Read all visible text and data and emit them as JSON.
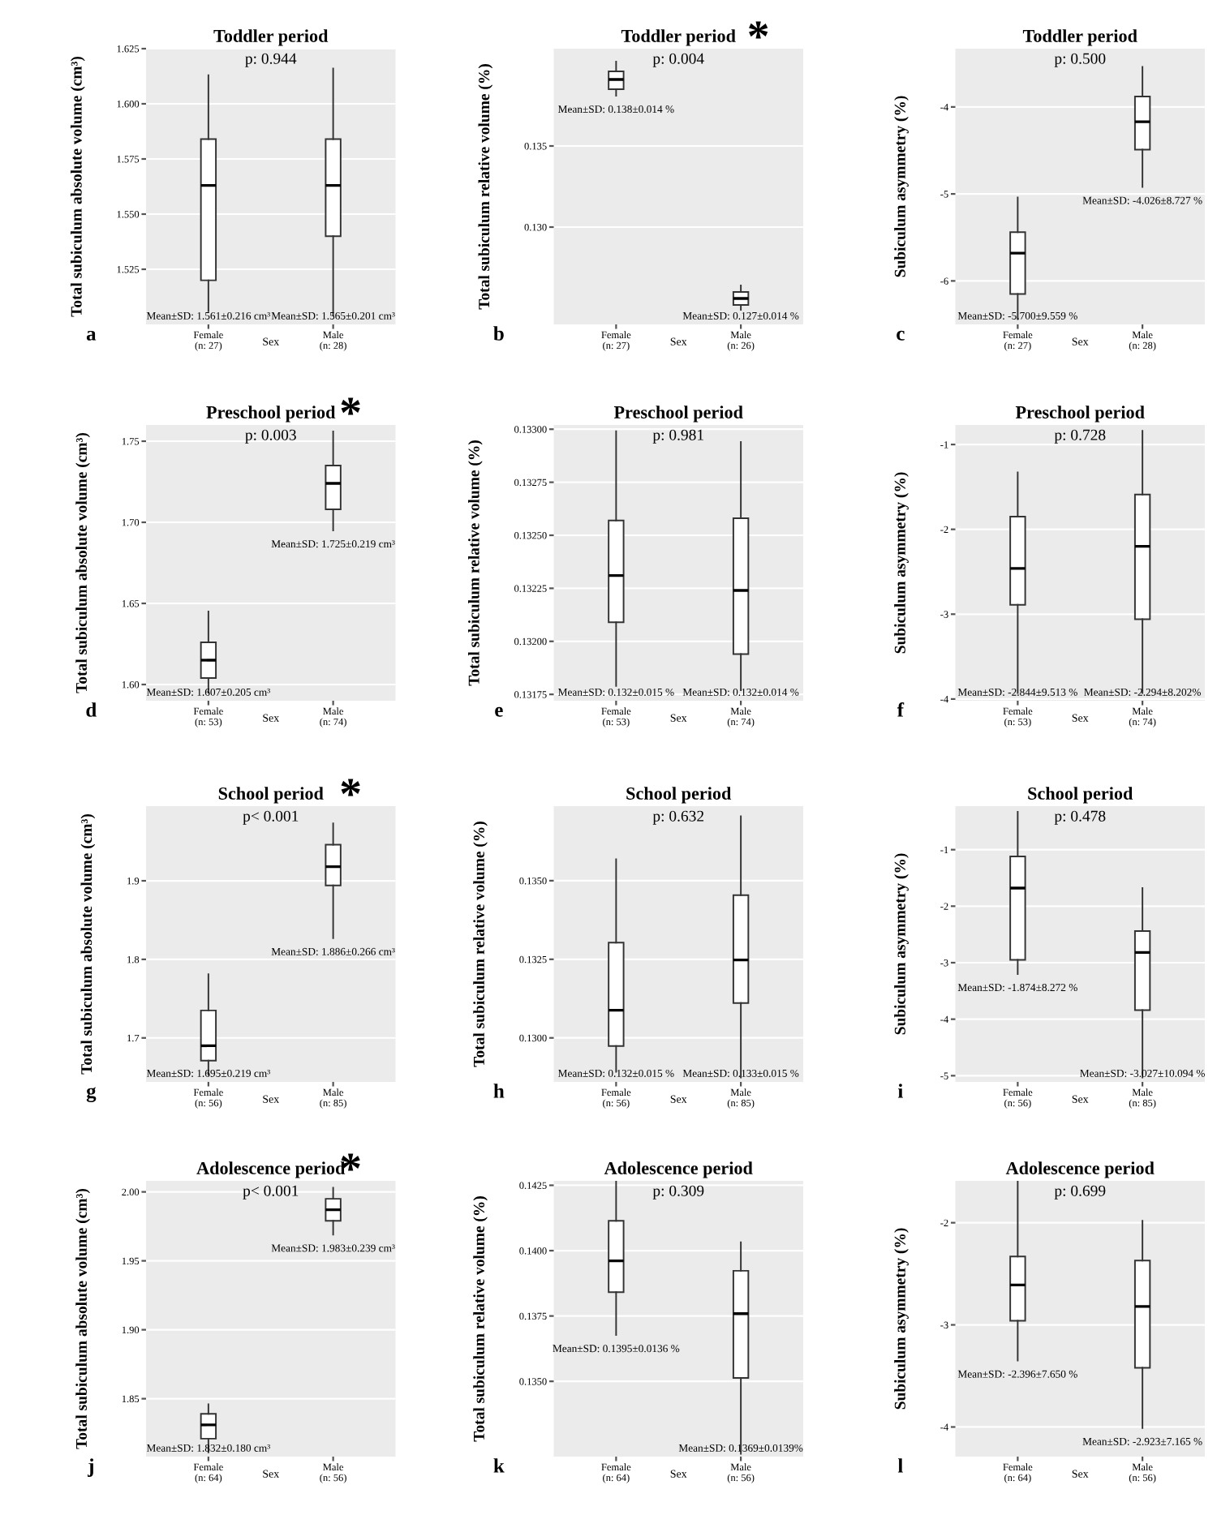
{
  "chart_data": [
    {
      "type": "box",
      "title": "Toddler period",
      "subtitle": "p: 0.944",
      "xlabel": "Sex",
      "ylabel": "Total subiculum absolute volume (cm³)",
      "categories": [
        "Female\n(n: 27)",
        "Male\n(n: 28)"
      ],
      "grid": "y",
      "ylim": [
        1.5,
        1.625
      ],
      "yticks": [
        1.525,
        {
          "value": 1.55,
          "label": "1.550"
        },
        1.575,
        {
          "value": 1.6,
          "label": "1.600"
        },
        1.625
      ],
      "boxes": [
        {
          "low": 1.506,
          "q1": 1.52,
          "median": 1.563,
          "q3": 1.584,
          "high": 1.613
        },
        {
          "low": 1.504,
          "q1": 1.54,
          "median": 1.563,
          "q3": 1.584,
          "high": 1.616
        }
      ],
      "annotations": [
        "a",
        "Mean±SD: 1.561±0.216 cm³",
        "Mean±SD: 1.565±0.201 cm³"
      ]
    },
    {
      "type": "box",
      "title": "Toddler period",
      "subtitle": "p: 0.004",
      "xlabel": "Sex",
      "ylabel": "Total subiculum relative volume (%)",
      "categories": [
        "Female\n(n: 27)",
        "Male\n(n: 26)"
      ],
      "grid": "y",
      "ylim": [
        0.124,
        0.141
      ],
      "yticks": [
        {
          "value": 0.13,
          "label": "0.130"
        },
        0.135
      ],
      "boxes": [
        {
          "low": 0.1381,
          "q1": 0.1385,
          "median": 0.1391,
          "q3": 0.1396,
          "high": 0.1402
        },
        {
          "low": 0.1249,
          "q1": 0.1252,
          "median": 0.1256,
          "q3": 0.126,
          "high": 0.1264
        }
      ],
      "annotations": [
        "b",
        "*",
        "Mean±SD: 0.138±0.014 %",
        "Mean±SD: 0.127±0.014 %"
      ]
    },
    {
      "type": "box",
      "title": "Toddler period",
      "subtitle": "p: 0.500",
      "xlabel": "Sex",
      "ylabel": "Subiculum asymmetry (%)",
      "categories": [
        "Female\n(n: 27)",
        "Male\n(n: 28)"
      ],
      "grid": "y",
      "ylim": [
        -6.5,
        -3.33
      ],
      "yticks": [
        -6,
        -5,
        -4
      ],
      "boxes": [
        {
          "low": -6.44,
          "q1": -6.15,
          "median": -5.68,
          "q3": -5.44,
          "high": -5.04
        },
        {
          "low": -4.92,
          "q1": -4.49,
          "median": -4.17,
          "q3": -3.88,
          "high": -3.54
        }
      ],
      "annotations": [
        "c",
        "Mean±SD: -5.700±9.559 %",
        "Mean±SD: -4.026±8.727 %"
      ]
    },
    {
      "type": "box",
      "title": "Preschool period",
      "subtitle": "p: 0.003",
      "xlabel": "Sex",
      "ylabel": "Total subiculum absolute volume (cm³)",
      "categories": [
        "Female\n(n: 53)",
        "Male\n(n: 74)"
      ],
      "grid": "y",
      "ylim": [
        1.59,
        1.76
      ],
      "yticks": [
        {
          "value": 1.6,
          "label": "1.60"
        },
        1.65,
        {
          "value": 1.7,
          "label": "1.70"
        },
        1.75
      ],
      "boxes": [
        {
          "low": 1.595,
          "q1": 1.604,
          "median": 1.615,
          "q3": 1.626,
          "high": 1.645
        },
        {
          "low": 1.695,
          "q1": 1.708,
          "median": 1.724,
          "q3": 1.735,
          "high": 1.756
        }
      ],
      "annotations": [
        "d",
        "*",
        "Mean±SD: 1.607±0.205 cm³",
        "Mean±SD: 1.725±0.219 cm³"
      ]
    },
    {
      "type": "box",
      "title": "Preschool period",
      "subtitle": "p: 0.981",
      "xlabel": "Sex",
      "ylabel": "Total subiculum relative volume (%)",
      "categories": [
        "Female\n(n: 53)",
        "Male\n(n: 74)"
      ],
      "grid": "y",
      "ylim": [
        0.13172,
        0.13302
      ],
      "yticks": [
        {
          "value": 0.13175,
          "label": "0.13175"
        },
        {
          "value": 0.132,
          "label": "0.13200"
        },
        {
          "value": 0.13225,
          "label": "0.13225"
        },
        {
          "value": 0.1325,
          "label": "0.13250"
        },
        {
          "value": 0.13275,
          "label": "0.13275"
        },
        {
          "value": 0.133,
          "label": "0.13300"
        }
      ],
      "boxes": [
        {
          "low": 0.13179,
          "q1": 0.13209,
          "median": 0.13231,
          "q3": 0.13257,
          "high": 0.13299
        },
        {
          "low": 0.13177,
          "q1": 0.13194,
          "median": 0.13224,
          "q3": 0.13258,
          "high": 0.13294
        }
      ],
      "annotations": [
        "e",
        "Mean±SD: 0.132±0.015 %",
        "Mean±SD: 0.132±0.014 %"
      ]
    },
    {
      "type": "box",
      "title": "Preschool period",
      "subtitle": "p: 0.728",
      "xlabel": "Sex",
      "ylabel": "Subiculum asymmetry (%)",
      "categories": [
        "Female\n(n: 53)",
        "Male\n(n: 74)"
      ],
      "grid": "y",
      "ylim": [
        -4.02,
        -0.77
      ],
      "yticks": [
        -4,
        -3,
        -2,
        -1
      ],
      "boxes": [
        {
          "low": -3.93,
          "q1": -2.89,
          "median": -2.46,
          "q3": -1.85,
          "high": -1.33
        },
        {
          "low": -3.93,
          "q1": -3.06,
          "median": -2.2,
          "q3": -1.59,
          "high": -0.84
        }
      ],
      "annotations": [
        "f",
        "Mean±SD: -2.844±9.513 %",
        "Mean±SD: -2.294±8.202%"
      ]
    },
    {
      "type": "box",
      "title": "School period",
      "subtitle": "p< 0.001",
      "xlabel": "Sex",
      "ylabel": "Total subiculum absolute volume (cm³)",
      "categories": [
        "Female\n(n: 56)",
        "Male\n(n: 85)"
      ],
      "grid": "y",
      "ylim": [
        1.644,
        1.995
      ],
      "yticks": [
        1.7,
        1.8,
        1.9
      ],
      "boxes": [
        {
          "low": 1.653,
          "q1": 1.671,
          "median": 1.69,
          "q3": 1.735,
          "high": 1.781
        },
        {
          "low": 1.827,
          "q1": 1.894,
          "median": 1.918,
          "q3": 1.946,
          "high": 1.973
        }
      ],
      "annotations": [
        "g",
        "*",
        "Mean±SD: 1.695±0.219 cm³",
        "Mean±SD: 1.886±0.266 cm³"
      ]
    },
    {
      "type": "box",
      "title": "School period",
      "subtitle": "p: 0.632",
      "xlabel": "Sex",
      "ylabel": "Total subiculum relative volume (%)",
      "categories": [
        "Female\n(n: 56)",
        "Male\n(n: 85)"
      ],
      "grid": "y",
      "ylim": [
        0.1286,
        0.13737
      ],
      "yticks": [
        {
          "value": 0.13,
          "label": "0.1300"
        },
        0.1325,
        {
          "value": 0.135,
          "label": "0.1350"
        }
      ],
      "boxes": [
        {
          "low": 0.12892,
          "q1": 0.12974,
          "median": 0.13088,
          "q3": 0.13303,
          "high": 0.13568
        },
        {
          "low": 0.12874,
          "q1": 0.13111,
          "median": 0.13248,
          "q3": 0.13454,
          "high": 0.13705
        }
      ],
      "annotations": [
        "h",
        "Mean±SD: 0.132±0.015 %",
        "Mean±SD: 0.133±0.015 %"
      ]
    },
    {
      "type": "box",
      "title": "School period",
      "subtitle": "p: 0.478",
      "xlabel": "Sex",
      "ylabel": "Subiculum asymmetry (%)",
      "categories": [
        "Female\n(n: 56)",
        "Male\n(n: 85)"
      ],
      "grid": "y",
      "ylim": [
        -5.11,
        -0.23
      ],
      "yticks": [
        -5,
        -4,
        -3,
        -2,
        -1
      ],
      "boxes": [
        {
          "low": -3.2,
          "q1": -2.95,
          "median": -1.68,
          "q3": -1.12,
          "high": -0.33
        },
        {
          "low": -5.03,
          "q1": -3.84,
          "median": -2.82,
          "q3": -2.44,
          "high": -1.68
        }
      ],
      "annotations": [
        "i",
        "Mean±SD: -1.874±8.272 %",
        "Mean±SD: -3.027±10.094 %"
      ]
    },
    {
      "type": "box",
      "title": "Adolescence period",
      "subtitle": "p< 0.001",
      "xlabel": "Sex",
      "ylabel": "Total subiculum absolute volume (cm³)",
      "categories": [
        "Female\n(n: 64)",
        "Male\n(n: 56)"
      ],
      "grid": "y",
      "ylim": [
        1.808,
        2.008
      ],
      "yticks": [
        1.85,
        {
          "value": 1.9,
          "label": "1.90"
        },
        1.95,
        {
          "value": 2.0,
          "label": "2.00"
        }
      ],
      "boxes": [
        {
          "low": 1.811,
          "q1": 1.821,
          "median": 1.831,
          "q3": 1.839,
          "high": 1.846
        },
        {
          "low": 1.969,
          "q1": 1.979,
          "median": 1.987,
          "q3": 1.995,
          "high": 2.003
        }
      ],
      "annotations": [
        "j",
        "*",
        "Mean±SD: 1.832±0.180 cm³",
        "Mean±SD: 1.983±0.239 cm³"
      ]
    },
    {
      "type": "box",
      "title": "Adolescence period",
      "subtitle": "p: 0.309",
      "xlabel": "Sex",
      "ylabel": "Total subiculum relative volume (%)",
      "categories": [
        "Female\n(n: 64)",
        "Male\n(n: 56)"
      ],
      "grid": "y",
      "ylim": [
        0.13212,
        0.14267
      ],
      "yticks": [
        {
          "value": 0.135,
          "label": "0.1350"
        },
        0.1375,
        {
          "value": 0.14,
          "label": "0.1400"
        },
        0.1425
      ],
      "boxes": [
        {
          "low": 0.13677,
          "q1": 0.13841,
          "median": 0.13961,
          "q3": 0.14114,
          "high": 0.14267
        },
        {
          "low": 0.13223,
          "q1": 0.13513,
          "median": 0.13759,
          "q3": 0.13923,
          "high": 0.14032
        }
      ],
      "annotations": [
        "k",
        "Mean±SD: 0.1395±0.0136 %",
        "Mean±SD: 0.1369±0.0139%"
      ]
    },
    {
      "type": "box",
      "title": "Adolescence period",
      "subtitle": "p: 0.699",
      "xlabel": "Sex",
      "ylabel": "Subiculum asymmetry (%)",
      "categories": [
        "Female\n(n: 64)",
        "Male\n(n: 56)"
      ],
      "grid": "y",
      "ylim": [
        -4.29,
        -1.59
      ],
      "yticks": [
        -4,
        -3,
        -2
      ],
      "boxes": [
        {
          "low": -3.35,
          "q1": -2.96,
          "median": -2.61,
          "q3": -2.33,
          "high": -1.59
        },
        {
          "low": -4.01,
          "q1": -3.42,
          "median": -2.82,
          "q3": -2.37,
          "high": -1.98
        }
      ],
      "annotations": [
        "l",
        "Mean±SD: -2.396±7.650 %",
        "Mean±SD: -2.923±7.165 %"
      ]
    }
  ]
}
